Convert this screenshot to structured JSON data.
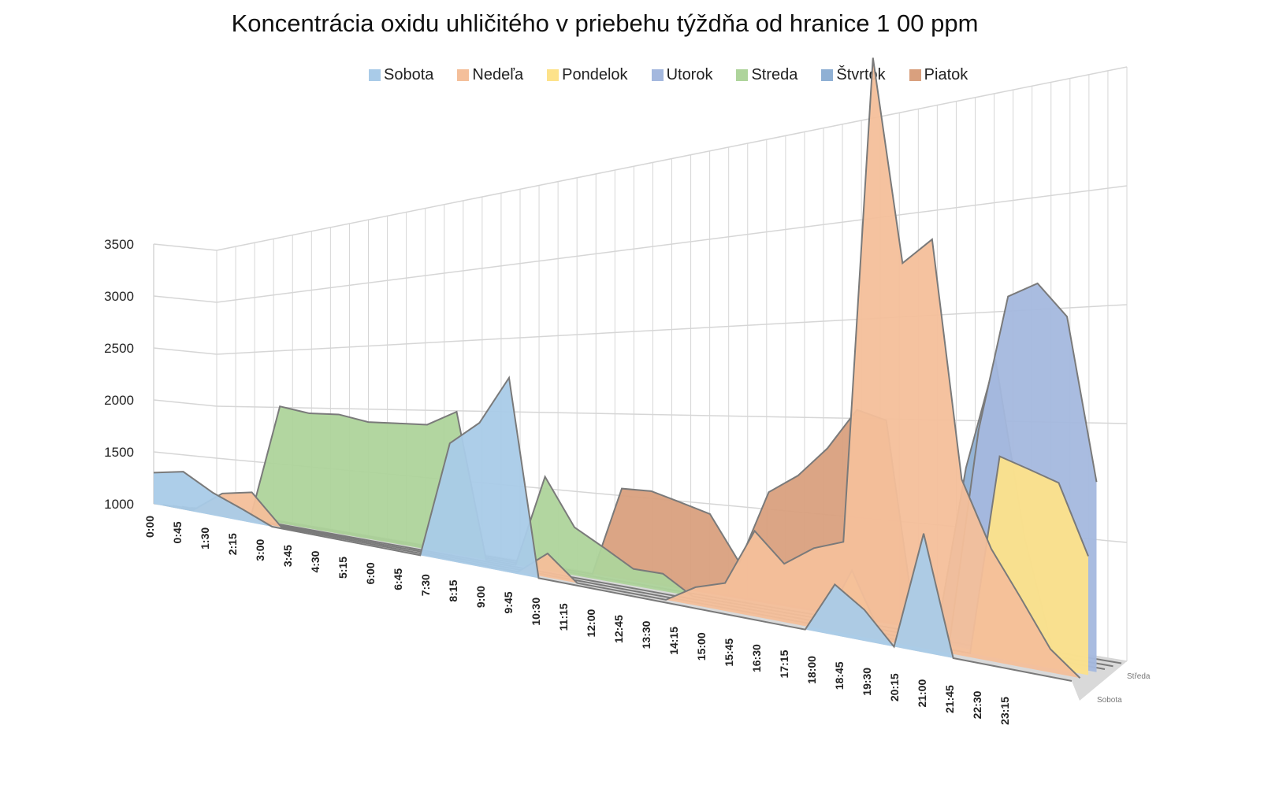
{
  "chart_data": {
    "type": "area",
    "variant": "3d-area",
    "title": "Koncentrácia oxidu uhličitého v priebehu týždňa od hranice 1 00 ppm",
    "xlabel": "",
    "ylabel": "",
    "ylim": [
      1000,
      3500
    ],
    "yticks": [
      "1000",
      "1500",
      "2000",
      "2500",
      "3000",
      "3500"
    ],
    "grid": true,
    "legend_placement": "top",
    "categories": [
      "0:00",
      "0:45",
      "1:30",
      "2:15",
      "3:00",
      "3:45",
      "4:30",
      "5:15",
      "6:00",
      "6:45",
      "7:30",
      "8:15",
      "9:00",
      "9:45",
      "10:30",
      "11:15",
      "12:00",
      "12:45",
      "13:30",
      "14:15",
      "15:00",
      "15:45",
      "16:30",
      "17:15",
      "18:00",
      "18:45",
      "19:30",
      "20:15",
      "21:00",
      "21:45",
      "22:30",
      "23:15"
    ],
    "depth_labels": [
      "Sobota",
      "Středa"
    ],
    "series": [
      {
        "name": "Sobota",
        "color": "#a9cbe8",
        "values": [
          1300,
          1350,
          1200,
          1100,
          1000,
          1000,
          1000,
          1000,
          1000,
          1000,
          1800,
          1950,
          2250,
          1000,
          1000,
          1000,
          1000,
          1000,
          1000,
          1000,
          1000,
          1000,
          1000,
          1250,
          1150,
          1000,
          1550,
          1000,
          1000,
          1000,
          1000,
          1000
        ]
      },
      {
        "name": "Nedeľa",
        "color": "#f4bf9a",
        "values": [
          1000,
          1000,
          1200,
          1250,
          1000,
          1000,
          1000,
          1000,
          1000,
          1000,
          1000,
          1000,
          1000,
          1150,
          1000,
          1000,
          1000,
          1000,
          1100,
          1150,
          1450,
          1300,
          1400,
          1450,
          3800,
          2800,
          2900,
          1800,
          1500,
          1300,
          1100,
          1000
        ]
      },
      {
        "name": "Pondelok",
        "color": "#fde28a",
        "values": [
          1000,
          1000,
          1000,
          1000,
          1000,
          1000,
          1000,
          1000,
          1000,
          1000,
          1000,
          1000,
          1000,
          1000,
          1000,
          1000,
          1000,
          1000,
          1000,
          1000,
          1000,
          1000,
          1000,
          1300,
          1000,
          1000,
          1000,
          1000,
          1900,
          1850,
          1800,
          1500
        ]
      },
      {
        "name": "Utorok",
        "color": "#a4b8de",
        "values": [
          1000,
          1000,
          1000,
          1000,
          1000,
          1000,
          1000,
          1000,
          1000,
          1000,
          1000,
          1000,
          1000,
          1000,
          1000,
          1000,
          1000,
          1000,
          1000,
          1000,
          1000,
          1000,
          1000,
          1000,
          1000,
          1000,
          1000,
          2000,
          2600,
          2650,
          2500,
          1800
        ]
      },
      {
        "name": "Streda",
        "color": "#aed49b",
        "values": [
          1000,
          1000,
          1000,
          2000,
          1950,
          1950,
          1900,
          1900,
          1900,
          2000,
          1000,
          1000,
          1600,
          1300,
          1200,
          1100,
          1100,
          1000,
          1000,
          1000,
          1000,
          1000,
          1000,
          1000,
          1000,
          1000,
          1000,
          1000,
          1000,
          1000,
          1000,
          1000
        ]
      },
      {
        "name": "Štvrtok",
        "color": "#8fb0d4",
        "values": [
          1000,
          1000,
          1000,
          1000,
          1000,
          1000,
          1000,
          1000,
          1000,
          1000,
          1000,
          1000,
          1000,
          1000,
          1000,
          1000,
          1000,
          1000,
          1000,
          1000,
          1000,
          1000,
          1000,
          1000,
          1000,
          1000,
          1800,
          2300,
          1500,
          1000,
          1000,
          1000
        ]
      },
      {
        "name": "Piatok",
        "color": "#d9a07e",
        "values": [
          1000,
          1000,
          1000,
          1000,
          1000,
          1000,
          1000,
          1000,
          1000,
          1000,
          1000,
          1000,
          1000,
          1000,
          1550,
          1550,
          1500,
          1450,
          1200,
          1600,
          1700,
          1850,
          2050,
          2000,
          1000,
          1000,
          1000,
          1000,
          1000,
          1000,
          1000,
          1000
        ]
      }
    ]
  }
}
